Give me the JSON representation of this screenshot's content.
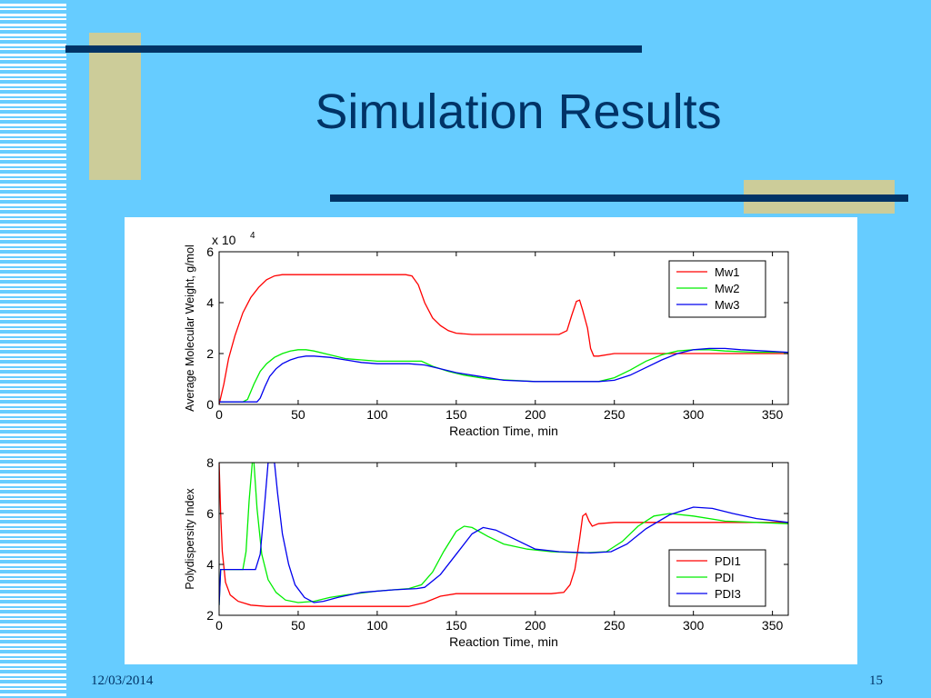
{
  "slide": {
    "title": "Simulation Results",
    "date": "12/03/2014",
    "page_number": "15"
  },
  "colors": {
    "background": "#66ccff",
    "title": "#003366",
    "accent_bar": "#003366",
    "accent_block": "#cccc99"
  },
  "chart_data": [
    {
      "type": "line",
      "xlabel": "Reaction Time, min",
      "ylabel": "Average Molecular Weight, g/mol",
      "y_multiplier": "x 10",
      "y_multiplier_exp": "4",
      "xlim": [
        0,
        360
      ],
      "ylim": [
        0,
        6
      ],
      "xticks": [
        0,
        50,
        100,
        150,
        200,
        250,
        300,
        350
      ],
      "yticks": [
        0,
        2,
        4,
        6
      ],
      "legend_position": "top-right",
      "series": [
        {
          "name": "Mw1",
          "color": "#ff0000",
          "points": [
            [
              0,
              0
            ],
            [
              3,
              0.8
            ],
            [
              6,
              1.8
            ],
            [
              10,
              2.7
            ],
            [
              15,
              3.6
            ],
            [
              20,
              4.2
            ],
            [
              25,
              4.6
            ],
            [
              30,
              4.9
            ],
            [
              35,
              5.05
            ],
            [
              40,
              5.1
            ],
            [
              60,
              5.1
            ],
            [
              80,
              5.1
            ],
            [
              100,
              5.1
            ],
            [
              118,
              5.1
            ],
            [
              122,
              5.05
            ],
            [
              126,
              4.7
            ],
            [
              130,
              4.0
            ],
            [
              135,
              3.4
            ],
            [
              140,
              3.1
            ],
            [
              145,
              2.9
            ],
            [
              150,
              2.8
            ],
            [
              160,
              2.75
            ],
            [
              180,
              2.75
            ],
            [
              200,
              2.75
            ],
            [
              215,
              2.75
            ],
            [
              220,
              2.9
            ],
            [
              223,
              3.5
            ],
            [
              226,
              4.05
            ],
            [
              228,
              4.1
            ],
            [
              230,
              3.7
            ],
            [
              233,
              3.0
            ],
            [
              235,
              2.2
            ],
            [
              237,
              1.9
            ],
            [
              240,
              1.9
            ],
            [
              250,
              2.0
            ],
            [
              300,
              2.0
            ],
            [
              360,
              2.0
            ]
          ]
        },
        {
          "name": "Mw2",
          "color": "#00ee00",
          "points": [
            [
              0,
              0.1
            ],
            [
              15,
              0.1
            ],
            [
              18,
              0.2
            ],
            [
              22,
              0.8
            ],
            [
              26,
              1.3
            ],
            [
              30,
              1.6
            ],
            [
              35,
              1.85
            ],
            [
              40,
              2.0
            ],
            [
              45,
              2.1
            ],
            [
              50,
              2.15
            ],
            [
              55,
              2.15
            ],
            [
              60,
              2.1
            ],
            [
              70,
              1.95
            ],
            [
              80,
              1.8
            ],
            [
              90,
              1.75
            ],
            [
              100,
              1.7
            ],
            [
              110,
              1.7
            ],
            [
              120,
              1.7
            ],
            [
              128,
              1.7
            ],
            [
              135,
              1.5
            ],
            [
              145,
              1.3
            ],
            [
              155,
              1.15
            ],
            [
              170,
              1.0
            ],
            [
              185,
              0.95
            ],
            [
              200,
              0.9
            ],
            [
              220,
              0.9
            ],
            [
              240,
              0.9
            ],
            [
              250,
              1.05
            ],
            [
              260,
              1.35
            ],
            [
              270,
              1.7
            ],
            [
              280,
              1.95
            ],
            [
              290,
              2.1
            ],
            [
              300,
              2.15
            ],
            [
              310,
              2.15
            ],
            [
              320,
              2.1
            ],
            [
              340,
              2.05
            ],
            [
              360,
              2.05
            ]
          ]
        },
        {
          "name": "Mw3",
          "color": "#0000ee",
          "points": [
            [
              0,
              0.1
            ],
            [
              24,
              0.1
            ],
            [
              26,
              0.25
            ],
            [
              29,
              0.7
            ],
            [
              32,
              1.1
            ],
            [
              36,
              1.4
            ],
            [
              40,
              1.6
            ],
            [
              45,
              1.75
            ],
            [
              50,
              1.85
            ],
            [
              55,
              1.9
            ],
            [
              60,
              1.9
            ],
            [
              70,
              1.85
            ],
            [
              80,
              1.75
            ],
            [
              90,
              1.65
            ],
            [
              100,
              1.6
            ],
            [
              110,
              1.6
            ],
            [
              120,
              1.6
            ],
            [
              130,
              1.55
            ],
            [
              140,
              1.4
            ],
            [
              150,
              1.25
            ],
            [
              165,
              1.1
            ],
            [
              180,
              0.95
            ],
            [
              200,
              0.9
            ],
            [
              220,
              0.9
            ],
            [
              240,
              0.9
            ],
            [
              250,
              0.95
            ],
            [
              260,
              1.15
            ],
            [
              270,
              1.45
            ],
            [
              280,
              1.75
            ],
            [
              290,
              2.0
            ],
            [
              300,
              2.15
            ],
            [
              310,
              2.2
            ],
            [
              320,
              2.2
            ],
            [
              330,
              2.15
            ],
            [
              345,
              2.1
            ],
            [
              360,
              2.05
            ]
          ]
        }
      ]
    },
    {
      "type": "line",
      "xlabel": "Reaction Time, min",
      "ylabel": "Polydispersity Index",
      "xlim": [
        0,
        360
      ],
      "ylim": [
        2,
        8
      ],
      "xticks": [
        0,
        50,
        100,
        150,
        200,
        250,
        300,
        350
      ],
      "yticks": [
        2,
        4,
        6,
        8
      ],
      "legend_position": "bottom-right",
      "series": [
        {
          "name": "PDI1",
          "color": "#ff0000",
          "points": [
            [
              0,
              8
            ],
            [
              1,
              6
            ],
            [
              2,
              4.5
            ],
            [
              4,
              3.3
            ],
            [
              7,
              2.8
            ],
            [
              12,
              2.55
            ],
            [
              20,
              2.4
            ],
            [
              30,
              2.35
            ],
            [
              50,
              2.35
            ],
            [
              80,
              2.35
            ],
            [
              100,
              2.35
            ],
            [
              120,
              2.35
            ],
            [
              130,
              2.5
            ],
            [
              140,
              2.75
            ],
            [
              150,
              2.85
            ],
            [
              170,
              2.85
            ],
            [
              190,
              2.85
            ],
            [
              210,
              2.85
            ],
            [
              218,
              2.9
            ],
            [
              222,
              3.2
            ],
            [
              225,
              3.8
            ],
            [
              228,
              5.0
            ],
            [
              230,
              5.9
            ],
            [
              232,
              6.0
            ],
            [
              234,
              5.7
            ],
            [
              236,
              5.5
            ],
            [
              240,
              5.6
            ],
            [
              250,
              5.65
            ],
            [
              270,
              5.65
            ],
            [
              300,
              5.65
            ],
            [
              360,
              5.65
            ]
          ]
        },
        {
          "name": "PDI",
          "color": "#00ee00",
          "points": [
            [
              0,
              2.4
            ],
            [
              1,
              3.8
            ],
            [
              15,
              3.8
            ],
            [
              17,
              4.5
            ],
            [
              19,
              6.5
            ],
            [
              21,
              8
            ],
            [
              22,
              8
            ],
            [
              24,
              6.2
            ],
            [
              27,
              4.4
            ],
            [
              31,
              3.4
            ],
            [
              36,
              2.9
            ],
            [
              42,
              2.6
            ],
            [
              50,
              2.5
            ],
            [
              60,
              2.55
            ],
            [
              70,
              2.7
            ],
            [
              80,
              2.8
            ],
            [
              100,
              2.95
            ],
            [
              120,
              3.05
            ],
            [
              128,
              3.2
            ],
            [
              135,
              3.7
            ],
            [
              142,
              4.5
            ],
            [
              150,
              5.3
            ],
            [
              155,
              5.5
            ],
            [
              160,
              5.45
            ],
            [
              170,
              5.1
            ],
            [
              180,
              4.8
            ],
            [
              195,
              4.6
            ],
            [
              210,
              4.5
            ],
            [
              230,
              4.45
            ],
            [
              245,
              4.5
            ],
            [
              255,
              4.9
            ],
            [
              265,
              5.5
            ],
            [
              275,
              5.9
            ],
            [
              285,
              6.0
            ],
            [
              300,
              5.9
            ],
            [
              320,
              5.7
            ],
            [
              340,
              5.65
            ],
            [
              360,
              5.6
            ]
          ]
        },
        {
          "name": "PDI3",
          "color": "#0000ee",
          "points": [
            [
              0,
              2.4
            ],
            [
              1,
              3.8
            ],
            [
              20,
              3.8
            ],
            [
              23,
              3.8
            ],
            [
              26,
              4.4
            ],
            [
              29,
              6.5
            ],
            [
              31,
              8
            ],
            [
              35,
              8
            ],
            [
              37,
              6.8
            ],
            [
              40,
              5.2
            ],
            [
              44,
              4.0
            ],
            [
              48,
              3.2
            ],
            [
              54,
              2.7
            ],
            [
              60,
              2.5
            ],
            [
              66,
              2.55
            ],
            [
              75,
              2.7
            ],
            [
              90,
              2.9
            ],
            [
              110,
              3.0
            ],
            [
              125,
              3.05
            ],
            [
              130,
              3.1
            ],
            [
              140,
              3.6
            ],
            [
              150,
              4.4
            ],
            [
              160,
              5.2
            ],
            [
              167,
              5.45
            ],
            [
              175,
              5.35
            ],
            [
              185,
              5.05
            ],
            [
              200,
              4.6
            ],
            [
              215,
              4.5
            ],
            [
              235,
              4.45
            ],
            [
              248,
              4.5
            ],
            [
              258,
              4.8
            ],
            [
              270,
              5.4
            ],
            [
              285,
              5.95
            ],
            [
              300,
              6.25
            ],
            [
              312,
              6.2
            ],
            [
              325,
              6.0
            ],
            [
              340,
              5.8
            ],
            [
              360,
              5.65
            ]
          ]
        }
      ]
    }
  ]
}
